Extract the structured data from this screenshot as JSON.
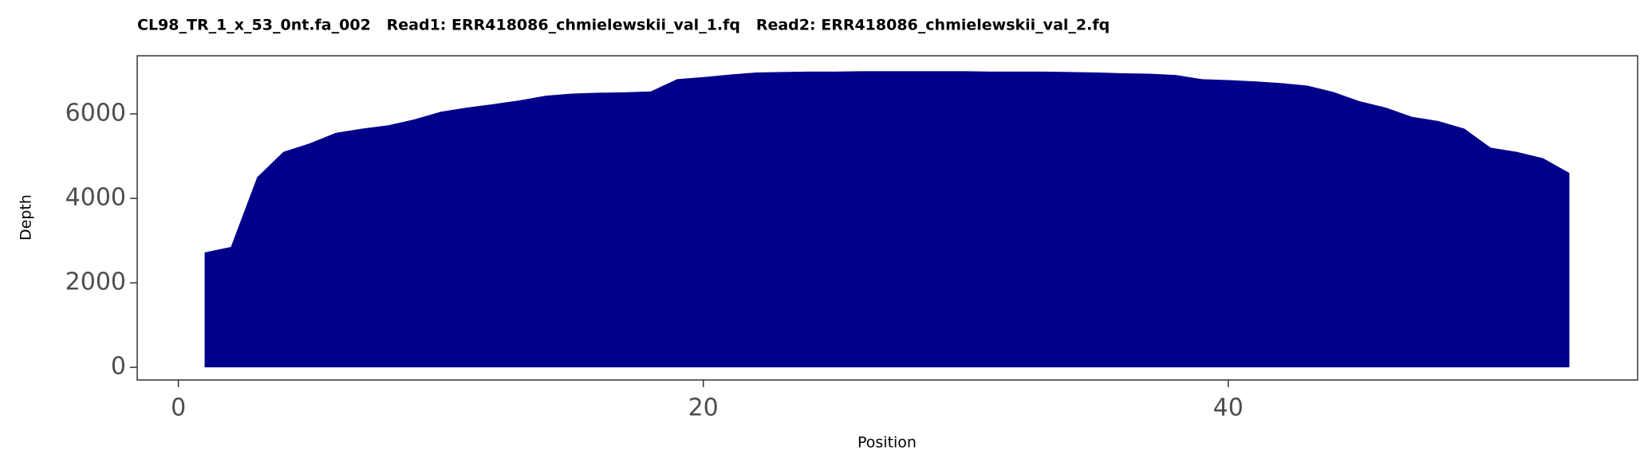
{
  "chart_data": {
    "type": "area",
    "title": "CL98_TR_1_x_53_0nt.fa_002   Read1: ERR418086_chmielewskii_val_1.fq   Read2: ERR418086_chmielewskii_val_2.fq",
    "x_label": "Position",
    "y_label": "Depth",
    "x": [
      1,
      2,
      3,
      4,
      5,
      6,
      7,
      8,
      9,
      10,
      11,
      12,
      13,
      14,
      15,
      16,
      17,
      18,
      19,
      20,
      21,
      22,
      23,
      24,
      25,
      26,
      27,
      28,
      29,
      30,
      31,
      32,
      33,
      34,
      35,
      36,
      37,
      38,
      39,
      40,
      41,
      42,
      43,
      44,
      45,
      46,
      47,
      48,
      49,
      50,
      51,
      52,
      53
    ],
    "values": [
      2720,
      2850,
      4500,
      5100,
      5300,
      5550,
      5650,
      5730,
      5870,
      6050,
      6150,
      6230,
      6320,
      6430,
      6480,
      6500,
      6510,
      6530,
      6820,
      6870,
      6930,
      6980,
      6990,
      7000,
      7000,
      7010,
      7010,
      7010,
      7010,
      7010,
      7000,
      7000,
      7000,
      6990,
      6980,
      6960,
      6950,
      6920,
      6820,
      6800,
      6770,
      6730,
      6670,
      6520,
      6300,
      6150,
      5930,
      5830,
      5650,
      5200,
      5100,
      4950,
      4600
    ],
    "color": "#00008b",
    "xlim": [
      -1.57,
      55.6
    ],
    "xticks": [
      0,
      20,
      40
    ],
    "ylim": [
      -300,
      7375
    ],
    "yticks": [
      0,
      2000,
      4000,
      6000
    ]
  }
}
